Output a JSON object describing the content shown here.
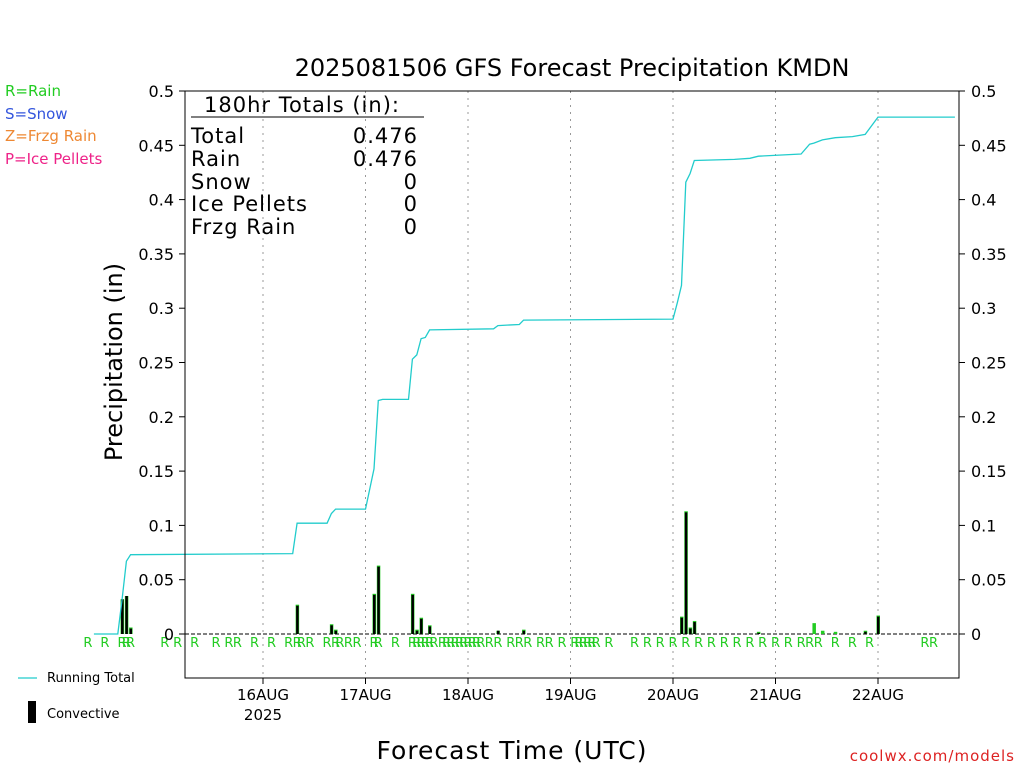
{
  "chart_data": {
    "type": "bar",
    "title": "2025081506 GFS Forecast Precipitation KMDN",
    "ylabel": "Precipitation (in)",
    "xlabel": "Forecast Time (UTC)",
    "ylim": [
      0,
      0.5
    ],
    "grid": "vertical dotted lines at each day",
    "y_ticks": [
      "0",
      "0.05",
      "0.1",
      "0.15",
      "0.2",
      "0.25",
      "0.3",
      "0.35",
      "0.4",
      "0.45",
      "0.5"
    ],
    "x_ticks": [
      {
        "label": "16AUG",
        "sub": "2025",
        "day": 1
      },
      {
        "label": "17AUG",
        "day": 2
      },
      {
        "label": "18AUG",
        "day": 3
      },
      {
        "label": "19AUG",
        "day": 4
      },
      {
        "label": "20AUG",
        "day": 5
      },
      {
        "label": "21AUG",
        "day": 6
      },
      {
        "label": "22AUG",
        "day": 7
      }
    ],
    "x_range_days": [
      -0.75,
      6.75
    ],
    "legend_types": [
      {
        "text": "R=Rain",
        "color": "#22cc22"
      },
      {
        "text": "S=Snow",
        "color": "#3355dd"
      },
      {
        "text": "Z=Frzg Rain",
        "color": "#ee8833"
      },
      {
        "text": "P=Ice Pellets",
        "color": "#ee2288"
      }
    ],
    "legend_series": [
      {
        "text": "Running Total",
        "color": "#22cccc",
        "kind": "line"
      },
      {
        "text": "Convective",
        "color": "#000000",
        "kind": "bar"
      }
    ],
    "totals": {
      "header": "180hr Totals (in):",
      "rows": [
        {
          "label": "Total",
          "value": "0.476"
        },
        {
          "label": "Rain",
          "value": "0.476"
        },
        {
          "label": "Snow",
          "value": "0"
        },
        {
          "label": "Ice Pellets",
          "value": "0"
        },
        {
          "label": "Frzg Rain",
          "value": "0"
        }
      ]
    },
    "bars": [
      {
        "day": -0.375,
        "value": 0.032,
        "convective": 0.032
      },
      {
        "day": -0.333,
        "value": 0.035,
        "convective": 0.035
      },
      {
        "day": -0.292,
        "value": 0.006,
        "convective": 0.005
      },
      {
        "day": 1.333,
        "value": 0.027,
        "convective": 0.026
      },
      {
        "day": 1.667,
        "value": 0.009,
        "convective": 0.008
      },
      {
        "day": 1.708,
        "value": 0.004,
        "convective": 0.003
      },
      {
        "day": 2.083,
        "value": 0.037,
        "convective": 0.036
      },
      {
        "day": 2.125,
        "value": 0.063,
        "convective": 0.062
      },
      {
        "day": 2.458,
        "value": 0.037,
        "convective": 0.036
      },
      {
        "day": 2.5,
        "value": 0.004,
        "convective": 0.003
      },
      {
        "day": 2.542,
        "value": 0.015,
        "convective": 0.014
      },
      {
        "day": 2.625,
        "value": 0.008,
        "convective": 0.007
      },
      {
        "day": 3.292,
        "value": 0.003,
        "convective": 0.003
      },
      {
        "day": 3.542,
        "value": 0.004,
        "convective": 0.003
      },
      {
        "day": 5.083,
        "value": 0.016,
        "convective": 0.015
      },
      {
        "day": 5.125,
        "value": 0.113,
        "convective": 0.112
      },
      {
        "day": 5.167,
        "value": 0.006,
        "convective": 0.005
      },
      {
        "day": 5.208,
        "value": 0.012,
        "convective": 0.011
      },
      {
        "day": 5.833,
        "value": 0.002,
        "convective": 0.001
      },
      {
        "day": 6.375,
        "value": 0.01,
        "convective": 0.0
      },
      {
        "day": 6.458,
        "value": 0.003,
        "convective": 0.0
      },
      {
        "day": 6.583,
        "value": 0.002,
        "convective": 0.0
      },
      {
        "day": 6.875,
        "value": 0.003,
        "convective": 0.002
      },
      {
        "day": 7.0,
        "value": 0.017,
        "convective": 0.016
      }
    ],
    "running_total": [
      {
        "day": -0.65,
        "value": 0.0
      },
      {
        "day": -0.417,
        "value": 0.0
      },
      {
        "day": -0.375,
        "value": 0.032
      },
      {
        "day": -0.333,
        "value": 0.067
      },
      {
        "day": -0.292,
        "value": 0.073
      },
      {
        "day": 1.29,
        "value": 0.074
      },
      {
        "day": 1.333,
        "value": 0.102
      },
      {
        "day": 1.625,
        "value": 0.102
      },
      {
        "day": 1.667,
        "value": 0.111
      },
      {
        "day": 1.708,
        "value": 0.115
      },
      {
        "day": 2.0,
        "value": 0.115
      },
      {
        "day": 2.083,
        "value": 0.152
      },
      {
        "day": 2.125,
        "value": 0.215
      },
      {
        "day": 2.167,
        "value": 0.216
      },
      {
        "day": 2.42,
        "value": 0.216
      },
      {
        "day": 2.458,
        "value": 0.253
      },
      {
        "day": 2.5,
        "value": 0.257
      },
      {
        "day": 2.542,
        "value": 0.272
      },
      {
        "day": 2.583,
        "value": 0.273
      },
      {
        "day": 2.625,
        "value": 0.28
      },
      {
        "day": 3.25,
        "value": 0.281
      },
      {
        "day": 3.292,
        "value": 0.284
      },
      {
        "day": 3.5,
        "value": 0.285
      },
      {
        "day": 3.542,
        "value": 0.289
      },
      {
        "day": 5.0,
        "value": 0.29
      },
      {
        "day": 5.042,
        "value": 0.305
      },
      {
        "day": 5.083,
        "value": 0.321
      },
      {
        "day": 5.125,
        "value": 0.416
      },
      {
        "day": 5.167,
        "value": 0.424
      },
      {
        "day": 5.208,
        "value": 0.436
      },
      {
        "day": 5.6,
        "value": 0.437
      },
      {
        "day": 5.75,
        "value": 0.438
      },
      {
        "day": 5.833,
        "value": 0.44
      },
      {
        "day": 6.25,
        "value": 0.442
      },
      {
        "day": 6.333,
        "value": 0.451
      },
      {
        "day": 6.375,
        "value": 0.452
      },
      {
        "day": 6.458,
        "value": 0.455
      },
      {
        "day": 6.583,
        "value": 0.457
      },
      {
        "day": 6.75,
        "value": 0.458
      },
      {
        "day": 6.875,
        "value": 0.46
      },
      {
        "day": 7.0,
        "value": 0.476
      },
      {
        "day": 7.75,
        "value": 0.476
      }
    ],
    "precip_type_marks": {
      "symbol": "R",
      "days": [
        -0.708,
        -0.542,
        -0.375,
        -0.333,
        -0.292,
        0.042,
        0.167,
        0.333,
        0.542,
        0.667,
        0.75,
        0.917,
        1.083,
        1.25,
        1.333,
        1.375,
        1.458,
        1.625,
        1.708,
        1.75,
        1.833,
        1.917,
        2.083,
        2.125,
        2.292,
        2.458,
        2.5,
        2.542,
        2.583,
        2.625,
        2.667,
        2.75,
        2.792,
        2.833,
        2.875,
        2.917,
        2.958,
        3.0,
        3.042,
        3.083,
        3.125,
        3.208,
        3.292,
        3.417,
        3.5,
        3.583,
        3.708,
        3.792,
        3.917,
        4.042,
        4.083,
        4.125,
        4.167,
        4.208,
        4.25,
        4.375,
        4.625,
        4.75,
        4.875,
        5.0,
        5.125,
        5.25,
        5.375,
        5.5,
        5.625,
        5.75,
        5.875,
        6.0,
        6.125,
        6.25,
        6.333,
        6.417,
        6.583,
        6.75,
        6.917,
        7.458,
        7.542
      ]
    }
  },
  "watermark": "coolwx.com/models",
  "colors": {
    "running_total": "#22cccc",
    "rain_bar": "#22cc22",
    "convective": "#000000",
    "rain_mark": "#22cc22",
    "grid": "#999999"
  }
}
